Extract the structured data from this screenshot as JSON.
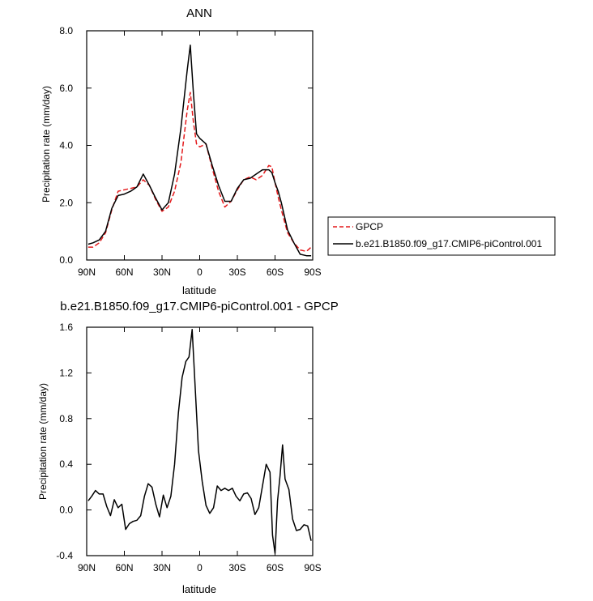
{
  "chart_data": [
    {
      "type": "line",
      "title": "ANN",
      "xlabel": "latitude",
      "ylabel": "Precipitation rate (mm/day)",
      "xlim": [
        90,
        -90
      ],
      "ylim": [
        0,
        8
      ],
      "x_ticks": [
        90,
        60,
        30,
        0,
        -30,
        -60,
        -90
      ],
      "x_tick_labels": [
        "90N",
        "60N",
        "30N",
        "0",
        "30S",
        "60S",
        "90S"
      ],
      "y_ticks": [
        0,
        2,
        4,
        6,
        8
      ],
      "y_tick_labels": [
        "0.0",
        "2.0",
        "4.0",
        "6.0",
        "8.0"
      ],
      "legend_position": "right",
      "series": [
        {
          "name": "GPCP",
          "color": "#e41a1c",
          "dash": "dashed",
          "x": [
            88.75,
            85,
            80,
            75,
            70,
            65,
            60,
            55,
            50,
            45,
            40,
            35,
            30,
            25,
            20,
            15,
            10,
            7.5,
            5,
            2.5,
            0,
            -5,
            -10,
            -15,
            -20,
            -25,
            -30,
            -35,
            -40,
            -45,
            -50,
            -55,
            -57.5,
            -60,
            -62.5,
            -65,
            -70,
            -75,
            -80,
            -85,
            -88.75
          ],
          "y": [
            0.45,
            0.45,
            0.6,
            0.95,
            1.75,
            2.4,
            2.45,
            2.5,
            2.55,
            2.8,
            2.6,
            2.1,
            1.7,
            1.85,
            2.4,
            3.4,
            5.2,
            5.85,
            4.8,
            4.05,
            3.95,
            4.05,
            3.2,
            2.4,
            1.85,
            2.05,
            2.45,
            2.8,
            2.9,
            2.8,
            2.95,
            3.3,
            3.25,
            2.7,
            2.2,
            1.75,
            0.95,
            0.6,
            0.35,
            0.3,
            0.45
          ]
        },
        {
          "name": "b.e21.B1850.f09_g17.CMIP6-piControl.001",
          "color": "#000000",
          "dash": "solid",
          "x": [
            88.75,
            85,
            80,
            75,
            70,
            65,
            60,
            55,
            50,
            45,
            40,
            35,
            30,
            25,
            20,
            15,
            10,
            7.5,
            5,
            2.5,
            0,
            -5,
            -10,
            -15,
            -20,
            -25,
            -30,
            -35,
            -40,
            -45,
            -50,
            -55,
            -57.5,
            -60,
            -62.5,
            -65,
            -70,
            -75,
            -80,
            -85,
            -88.75
          ],
          "y": [
            0.55,
            0.6,
            0.7,
            1.0,
            1.8,
            2.25,
            2.3,
            2.4,
            2.55,
            3.0,
            2.6,
            2.15,
            1.75,
            2.0,
            3.0,
            4.6,
            6.6,
            7.5,
            5.8,
            4.4,
            4.25,
            4.05,
            3.3,
            2.6,
            2.05,
            2.05,
            2.5,
            2.8,
            2.85,
            3.0,
            3.15,
            3.15,
            3.05,
            2.7,
            2.4,
            2.0,
            1.05,
            0.6,
            0.2,
            0.15,
            0.15
          ]
        }
      ]
    },
    {
      "type": "line",
      "title": "b.e21.B1850.f09_g17.CMIP6-piControl.001 - GPCP",
      "xlabel": "latitude",
      "ylabel": "Precipitation rate (mm/day)",
      "xlim": [
        90,
        -90
      ],
      "ylim": [
        -0.4,
        1.6
      ],
      "x_ticks": [
        90,
        60,
        30,
        0,
        -30,
        -60,
        -90
      ],
      "x_tick_labels": [
        "90N",
        "60N",
        "30N",
        "0",
        "30S",
        "60S",
        "90S"
      ],
      "y_ticks": [
        -0.4,
        0,
        0.4,
        0.8,
        1.2,
        1.6
      ],
      "y_tick_labels": [
        "-0.4",
        "0.0",
        "0.4",
        "0.8",
        "1.2",
        "1.6"
      ],
      "series": [
        {
          "color": "#000000",
          "dash": "solid",
          "x": [
            88.75,
            86,
            83,
            80,
            77,
            74,
            71,
            68,
            65,
            62,
            59,
            56,
            53,
            50,
            47,
            44,
            41,
            38,
            35,
            32,
            29,
            26,
            23,
            20,
            17,
            14,
            11,
            8.5,
            6,
            3.5,
            1,
            -2,
            -5,
            -8,
            -11,
            -14,
            -17,
            -20,
            -23,
            -26,
            -29,
            -32,
            -35,
            -38,
            -41,
            -44,
            -47,
            -50,
            -53,
            -56,
            -58,
            -60,
            -62,
            -64,
            -66,
            -68,
            -71,
            -74,
            -77,
            -80,
            -83,
            -86,
            -88.75
          ],
          "y": [
            0.08,
            0.12,
            0.17,
            0.14,
            0.14,
            0.03,
            -0.05,
            0.09,
            0.02,
            0.05,
            -0.17,
            -0.12,
            -0.1,
            -0.09,
            -0.05,
            0.12,
            0.23,
            0.2,
            0.05,
            -0.06,
            0.13,
            0.02,
            0.12,
            0.4,
            0.85,
            1.16,
            1.3,
            1.34,
            1.58,
            1.05,
            0.52,
            0.25,
            0.04,
            -0.03,
            0.02,
            0.21,
            0.17,
            0.19,
            0.17,
            0.19,
            0.12,
            0.08,
            0.14,
            0.15,
            0.1,
            -0.04,
            0.02,
            0.21,
            0.4,
            0.33,
            -0.22,
            -0.38,
            0.08,
            0.3,
            0.57,
            0.27,
            0.18,
            -0.08,
            -0.18,
            -0.17,
            -0.13,
            -0.14,
            -0.27
          ]
        }
      ]
    }
  ]
}
